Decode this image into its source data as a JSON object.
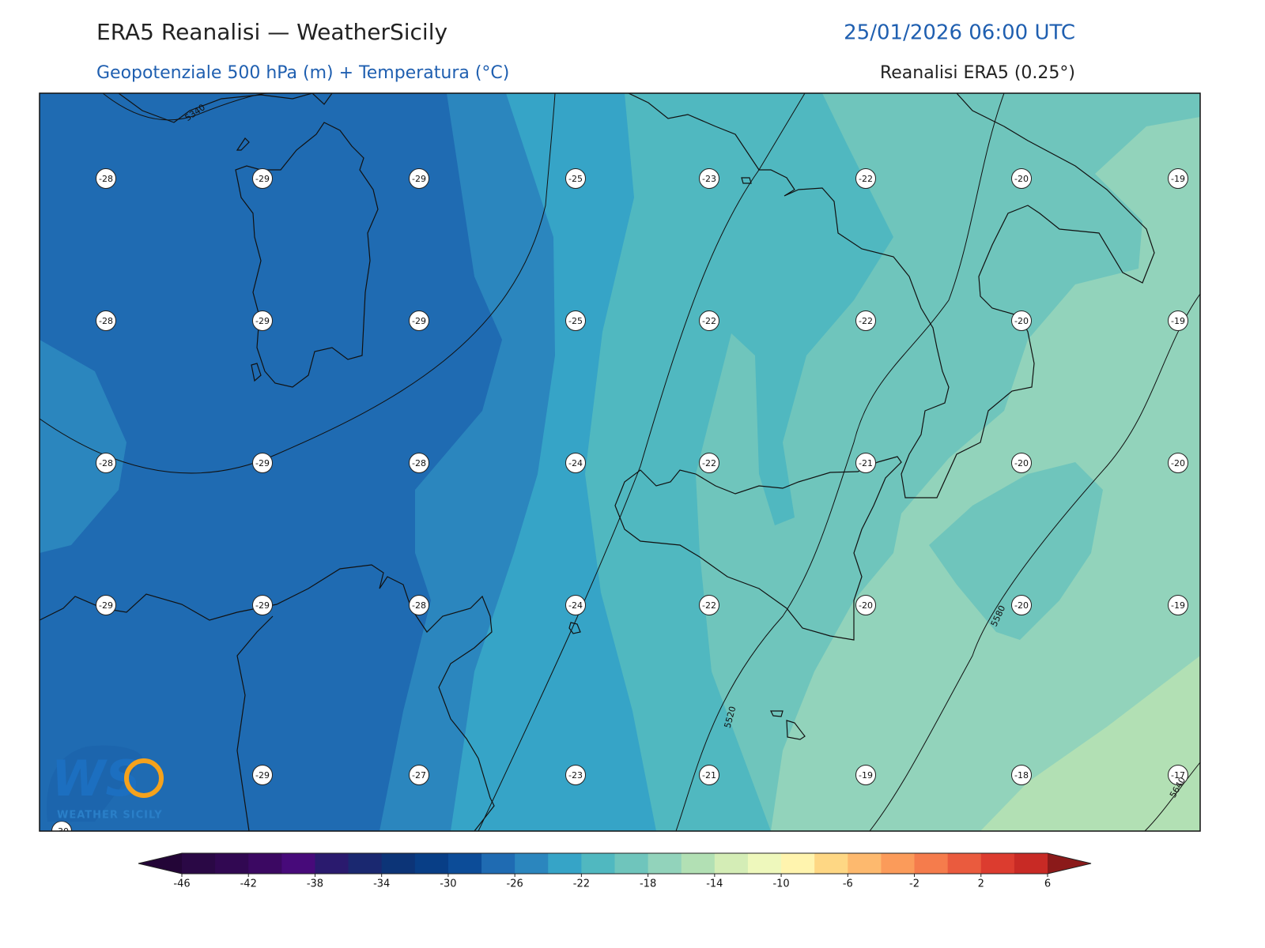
{
  "header": {
    "title": "ERA5 Reanalisi — WeatherSicily",
    "datetime": "25/01/2026 06:00 UTC",
    "subtitle": "Geopotenziale 500 hPa (m) + Temperatura (°C)",
    "source": "Reanalisi ERA5 (0.25°)"
  },
  "map": {
    "temperature_labels": [
      [
        -28,
        -29,
        -29,
        -25,
        -23,
        -22,
        -20,
        -19
      ],
      [
        -28,
        -29,
        -29,
        -25,
        -22,
        -22,
        -20,
        -19
      ],
      [
        -28,
        -29,
        -28,
        -24,
        -22,
        -21,
        -20,
        -20
      ],
      [
        -29,
        -29,
        -28,
        -24,
        -22,
        -20,
        -20,
        -19
      ],
      [
        null,
        -29,
        -27,
        -23,
        -21,
        -19,
        -18,
        -17
      ]
    ],
    "corner_label": -30,
    "contour_labels": [
      5340,
      5520,
      5580,
      5640
    ]
  },
  "colorbar": {
    "range": [
      -46,
      6
    ],
    "ticks": [
      -46,
      -42,
      -38,
      -34,
      -30,
      -26,
      -22,
      -18,
      -14,
      -10,
      -6,
      -2,
      2,
      6
    ],
    "colors": [
      "#2a0845",
      "#310852",
      "#3b0862",
      "#470a7a",
      "#2a1a6e",
      "#1a2870",
      "#0c3477",
      "#083e86",
      "#0c4c98",
      "#1f6bb2",
      "#2b86be",
      "#36a4c7",
      "#50b8c0",
      "#6fc5bc",
      "#92d3bb",
      "#b2e0b4",
      "#d4edb6",
      "#eef8bc",
      "#fff4ae",
      "#fed784",
      "#fdb96e",
      "#fb9b5a",
      "#f57c4c",
      "#ea5b3e",
      "#dc3c2f",
      "#c82a25"
    ],
    "under_color": "#230537",
    "over_color": "#8b1a1a"
  },
  "logo": {
    "mark": "WS",
    "text": "WEATHER SICILY"
  }
}
